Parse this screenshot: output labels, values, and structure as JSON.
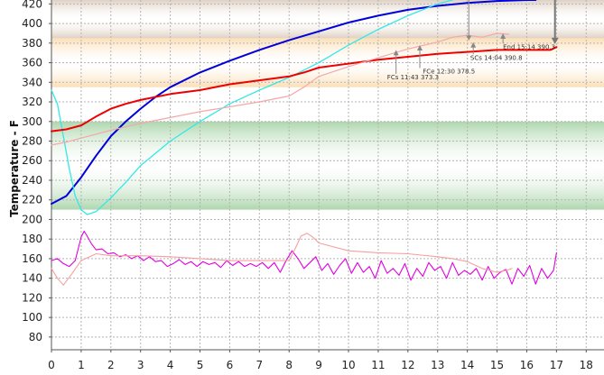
{
  "chart_data": {
    "type": "line",
    "ylabel": "Temperature - F",
    "xlabel": "",
    "xlim": [
      0,
      18.6
    ],
    "ylim": [
      67,
      424
    ],
    "x_ticks": [
      0,
      1,
      2,
      3,
      4,
      5,
      6,
      7,
      8,
      9,
      10,
      11,
      12,
      13,
      14,
      15,
      16,
      17,
      18
    ],
    "y_ticks": [
      80,
      100,
      120,
      140,
      160,
      180,
      200,
      220,
      240,
      260,
      280,
      300,
      320,
      340,
      360,
      380,
      400,
      420
    ],
    "bands": [
      {
        "name": "band-top",
        "from": 385,
        "to": 424,
        "color": "#d9c8b8"
      },
      {
        "name": "band-orange",
        "from": 335,
        "to": 385,
        "color": "#fbd9a8"
      },
      {
        "name": "band-green",
        "from": 210,
        "to": 300,
        "color": "#9fcf9f"
      }
    ],
    "series": [
      {
        "color": "#0000dd",
        "width": 2,
        "x": [
          0,
          0.5,
          1,
          1.5,
          2,
          2.5,
          3,
          3.5,
          4,
          5,
          6,
          7,
          8,
          9,
          10,
          11,
          12,
          13,
          14,
          15,
          16,
          16.3
        ],
        "y": [
          216,
          224,
          243,
          265,
          285,
          300,
          313,
          325,
          335,
          350,
          362,
          373,
          383,
          392,
          401,
          408,
          414,
          418,
          421,
          423,
          424,
          424
        ]
      },
      {
        "color": "#33e8e8",
        "width": 1.3,
        "x": [
          0,
          0.2,
          0.4,
          0.6,
          0.8,
          1,
          1.2,
          1.5,
          2,
          2.5,
          3,
          4,
          5,
          6,
          7,
          8,
          9,
          10,
          11,
          12,
          13,
          13.5
        ],
        "y": [
          332,
          318,
          285,
          252,
          224,
          210,
          205,
          208,
          222,
          238,
          255,
          280,
          300,
          318,
          332,
          345,
          360,
          378,
          394,
          408,
          420,
          424
        ]
      },
      {
        "color": "#ee0000",
        "width": 2,
        "x": [
          0,
          0.5,
          1,
          1.5,
          2,
          2.5,
          3,
          4,
          5,
          6,
          7,
          8,
          8.5,
          9,
          10,
          11,
          12,
          13,
          14,
          15,
          16,
          16.8,
          17
        ],
        "y": [
          290,
          292,
          296,
          305,
          313,
          318,
          322,
          328,
          332,
          338,
          342,
          346,
          350,
          355,
          359,
          363,
          366,
          369,
          371,
          373,
          373,
          373,
          376
        ]
      },
      {
        "color": "#f5a8a8",
        "width": 1.2,
        "x": [
          0,
          0.5,
          1,
          2,
          3,
          4,
          5,
          6,
          7,
          8,
          8.5,
          9,
          10,
          11,
          12,
          13,
          13.5,
          14,
          14.5,
          15,
          15.4
        ],
        "y": [
          276,
          279,
          283,
          291,
          298,
          304,
          310,
          315,
          320,
          326,
          335,
          346,
          356,
          365,
          374,
          381,
          386,
          388,
          386,
          390,
          389
        ]
      },
      {
        "color": "#e000e0",
        "width": 1.1,
        "x": [
          0,
          0.2,
          0.4,
          0.6,
          0.8,
          1,
          1.1,
          1.2,
          1.35,
          1.5,
          1.7,
          1.9,
          2.1,
          2.3,
          2.5,
          2.7,
          2.9,
          3.1,
          3.3,
          3.5,
          3.7,
          3.9,
          4.1,
          4.3,
          4.5,
          4.7,
          4.9,
          5.1,
          5.3,
          5.5,
          5.7,
          5.9,
          6.1,
          6.3,
          6.5,
          6.7,
          6.9,
          7.1,
          7.3,
          7.5,
          7.7,
          7.9,
          8.1,
          8.3,
          8.5,
          8.7,
          8.9,
          9.1,
          9.3,
          9.5,
          9.7,
          9.9,
          10.1,
          10.3,
          10.5,
          10.7,
          10.9,
          11.1,
          11.3,
          11.5,
          11.7,
          11.9,
          12.1,
          12.3,
          12.5,
          12.7,
          12.9,
          13.1,
          13.3,
          13.5,
          13.7,
          13.9,
          14.1,
          14.3,
          14.5,
          14.7,
          14.9,
          15.1,
          15.3,
          15.5,
          15.7,
          15.9,
          16.1,
          16.3,
          16.5,
          16.7,
          16.9,
          17
        ],
        "y": [
          158,
          160,
          155,
          152,
          158,
          182,
          188,
          183,
          175,
          169,
          170,
          165,
          166,
          162,
          164,
          160,
          163,
          158,
          162,
          157,
          158,
          152,
          155,
          159,
          154,
          157,
          152,
          157,
          154,
          156,
          151,
          158,
          153,
          157,
          152,
          155,
          152,
          156,
          150,
          156,
          146,
          158,
          168,
          160,
          150,
          156,
          162,
          148,
          155,
          144,
          153,
          160,
          145,
          156,
          146,
          152,
          140,
          158,
          145,
          150,
          143,
          155,
          138,
          150,
          142,
          156,
          148,
          152,
          140,
          156,
          143,
          148,
          144,
          150,
          138,
          152,
          140,
          146,
          149,
          134,
          150,
          142,
          153,
          134,
          150,
          140,
          148,
          166
        ]
      },
      {
        "color": "#f5a0a0",
        "width": 1.1,
        "x": [
          0,
          0.2,
          0.4,
          0.7,
          1,
          1.5,
          2,
          3,
          4,
          5,
          6,
          7,
          8,
          8.2,
          8.4,
          8.6,
          8.8,
          9,
          10,
          11,
          12,
          13,
          13.5,
          14,
          14.5,
          15,
          15.3,
          15.5
        ],
        "y": [
          150,
          140,
          133,
          145,
          158,
          165,
          163,
          163,
          162,
          160,
          158,
          158,
          158,
          170,
          183,
          186,
          182,
          176,
          168,
          166,
          165,
          162,
          160,
          157,
          150,
          146,
          148,
          150
        ]
      }
    ],
    "annotations": [
      {
        "label": "FCs 11:43 373.3",
        "x": 11.6,
        "y": 373,
        "text_x": 11.3,
        "text_y": 343
      },
      {
        "label": "FCe 12:30 378.5",
        "x": 12.4,
        "y": 378,
        "text_x": 12.5,
        "text_y": 349
      },
      {
        "label": "SCs 14:04 390.8",
        "x": 14.2,
        "y": 381,
        "text_x": 14.1,
        "text_y": 363
      },
      {
        "label": "End 15:14 390.3",
        "x": 15.2,
        "y": 390,
        "text_x": 15.2,
        "text_y": 374
      }
    ]
  }
}
